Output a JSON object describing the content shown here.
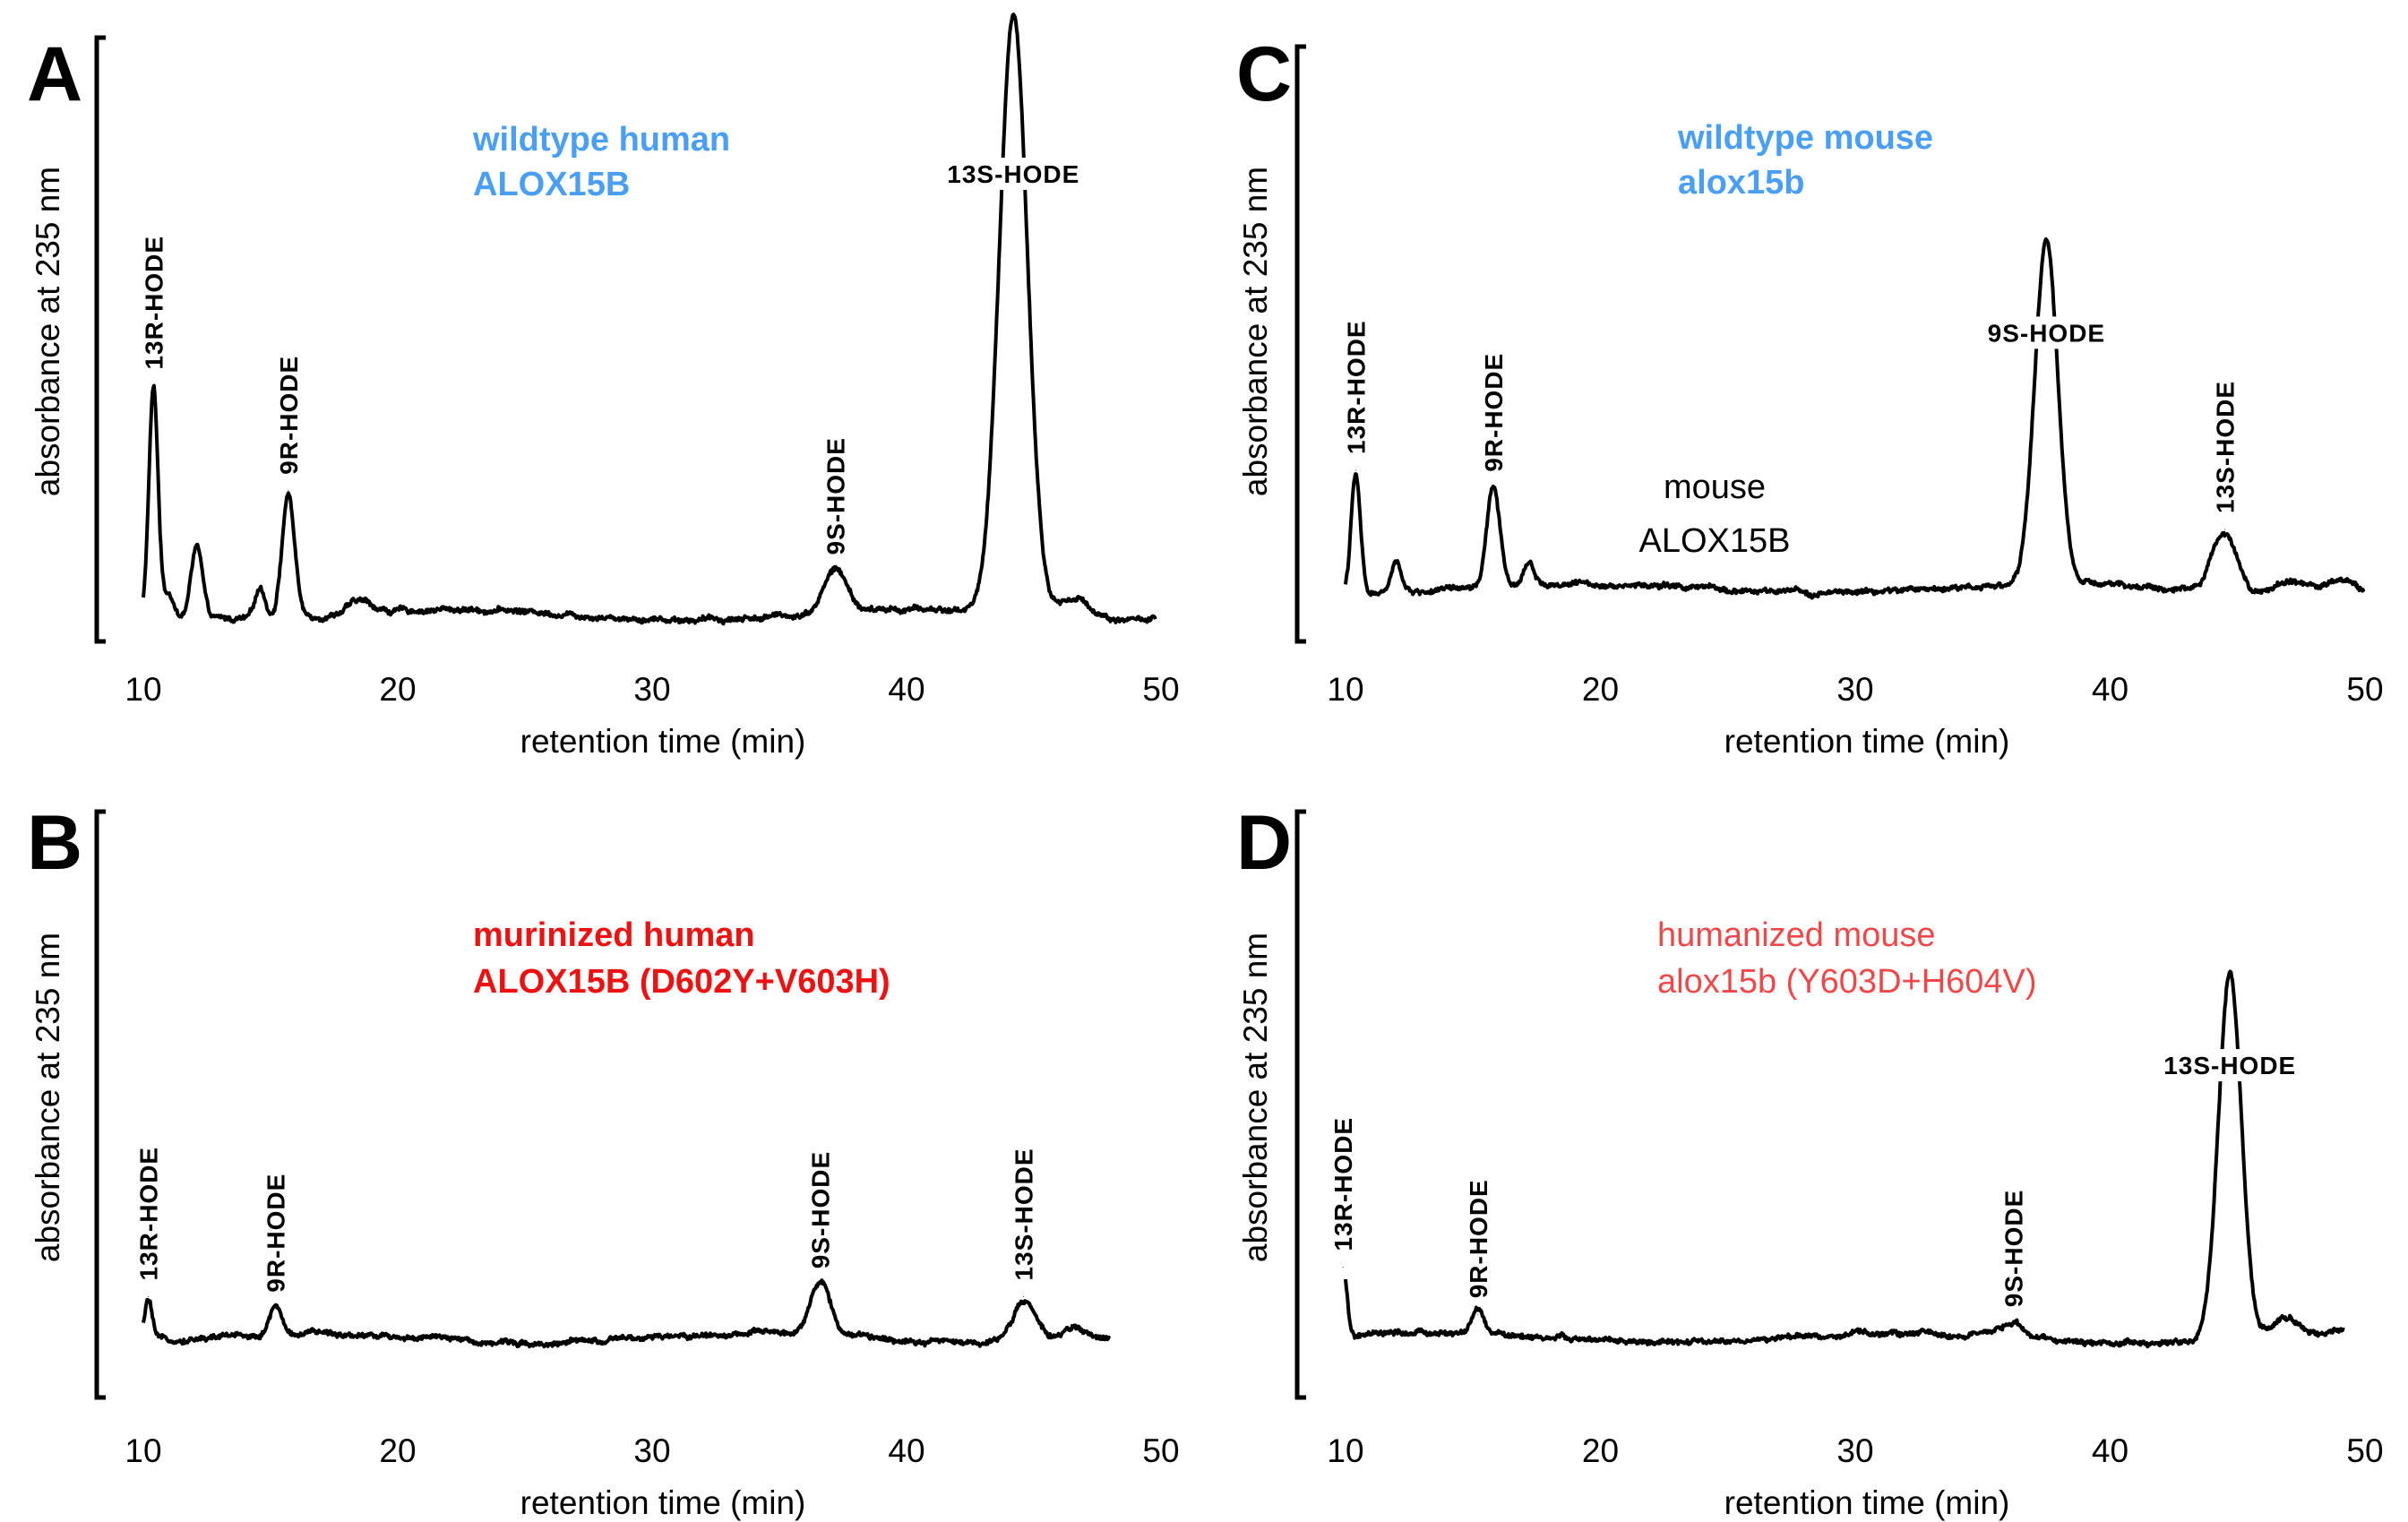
{
  "chart_data": [
    {
      "type": "line",
      "panel": "A",
      "title_lines": [
        "wildtype human",
        "ALOX15B"
      ],
      "title_color": "#4a9ff5",
      "title_bold": true,
      "xlabel": "retention time (min)",
      "ylabel": "absorbance at 235 nm",
      "xlim": [
        10,
        50
      ],
      "xticks": [
        10,
        20,
        30,
        40,
        50
      ],
      "ylim": [
        0,
        100
      ],
      "trace_end": 49.8,
      "baseline": 3.5,
      "peaks": [
        {
          "label": "13R-HODE",
          "x": 10.4,
          "height": 37,
          "width": 0.18,
          "label_orient": "vertical"
        },
        {
          "label": "9R-HODE",
          "x": 15.7,
          "height": 20,
          "width": 0.25,
          "label_orient": "vertical"
        },
        {
          "label": "9S-HODE",
          "x": 37.2,
          "height": 7,
          "width": 0.45,
          "label_orient": "vertical"
        },
        {
          "label": "13S-HODE",
          "x": 44.2,
          "height": 97,
          "width": 0.55,
          "label_orient": "horizontal"
        }
      ],
      "minor_peaks": [
        {
          "x": 11.0,
          "height": 4,
          "width": 0.2
        },
        {
          "x": 12.1,
          "height": 12,
          "width": 0.22
        },
        {
          "x": 14.6,
          "height": 5,
          "width": 0.2
        },
        {
          "x": 18.5,
          "height": 2,
          "width": 0.5
        },
        {
          "x": 46.6,
          "height": 3,
          "width": 0.6
        }
      ]
    },
    {
      "type": "line",
      "panel": "C",
      "title_lines": [
        "wildtype mouse",
        "alox15b"
      ],
      "title_color": "#4a9ff5",
      "title_bold": true,
      "annotation_lines": [
        "mouse",
        "ALOX15B"
      ],
      "xlabel": "retention time (min)",
      "ylabel": "absorbance at 235 nm",
      "xlim": [
        10,
        50
      ],
      "xticks": [
        10,
        20,
        30,
        40,
        50
      ],
      "ylim": [
        0,
        100
      ],
      "trace_end": 50,
      "baseline": 5,
      "peaks": [
        {
          "label": "13R-HODE",
          "x": 10.4,
          "height": 20,
          "width": 0.18,
          "label_orient": "vertical"
        },
        {
          "label": "9R-HODE",
          "x": 15.8,
          "height": 17,
          "width": 0.25,
          "label_orient": "vertical"
        },
        {
          "label": "9S-HODE",
          "x": 37.5,
          "height": 58,
          "width": 0.45,
          "label_orient": "horizontal"
        },
        {
          "label": "13S-HODE",
          "x": 44.5,
          "height": 10,
          "width": 0.5,
          "label_orient": "vertical"
        }
      ],
      "minor_peaks": [
        {
          "x": 12.0,
          "height": 5,
          "width": 0.2
        },
        {
          "x": 17.2,
          "height": 4,
          "width": 0.22
        },
        {
          "x": 47.2,
          "height": 2,
          "width": 0.6
        },
        {
          "x": 49.0,
          "height": 2,
          "width": 0.5
        }
      ]
    },
    {
      "type": "line",
      "panel": "B",
      "title_lines": [
        "murinized human",
        "ALOX15B (D602Y+V603H)"
      ],
      "title_color": "#ee1111",
      "title_bold": true,
      "xlabel": "retention time (min)",
      "ylabel": "absorbance at 235 nm",
      "xlim": [
        10,
        50
      ],
      "xticks": [
        10,
        20,
        30,
        40,
        50
      ],
      "ylim": [
        0,
        100
      ],
      "trace_end": 48,
      "baseline": 5.5,
      "peaks": [
        {
          "label": "13R-HODE",
          "x": 10.2,
          "height": 7,
          "width": 0.15,
          "label_orient": "vertical"
        },
        {
          "label": "9R-HODE",
          "x": 15.2,
          "height": 5,
          "width": 0.22,
          "label_orient": "vertical"
        },
        {
          "label": "9S-HODE",
          "x": 36.6,
          "height": 9,
          "width": 0.4,
          "label_orient": "vertical"
        },
        {
          "label": "13S-HODE",
          "x": 44.6,
          "height": 7,
          "width": 0.45,
          "label_orient": "vertical"
        }
      ],
      "minor_peaks": [
        {
          "x": 46.5,
          "height": 2,
          "width": 0.5
        }
      ]
    },
    {
      "type": "line",
      "panel": "D",
      "title_lines": [
        "humanized mouse",
        "alox15b (Y603D+H604V)"
      ],
      "title_color": "#f04848",
      "title_bold": false,
      "xlabel": "retention time (min)",
      "ylabel": "absorbance at 235 nm",
      "xlim": [
        10,
        50
      ],
      "xticks": [
        10,
        20,
        30,
        40,
        50
      ],
      "ylim": [
        0,
        100
      ],
      "trace_end": 49.2,
      "baseline": 5.5,
      "peaks": [
        {
          "label": "13R-HODE",
          "x": 9.9,
          "height": 12,
          "width": 0.15,
          "label_orient": "vertical"
        },
        {
          "label": "9R-HODE",
          "x": 15.2,
          "height": 4,
          "width": 0.22,
          "label_orient": "vertical"
        },
        {
          "label": "9S-HODE",
          "x": 36.2,
          "height": 2.5,
          "width": 0.45,
          "label_orient": "vertical"
        },
        {
          "label": "13S-HODE",
          "x": 44.7,
          "height": 62,
          "width": 0.45,
          "label_orient": "horizontal"
        }
      ],
      "minor_peaks": [
        {
          "x": 46.9,
          "height": 3,
          "width": 0.45
        }
      ]
    }
  ]
}
